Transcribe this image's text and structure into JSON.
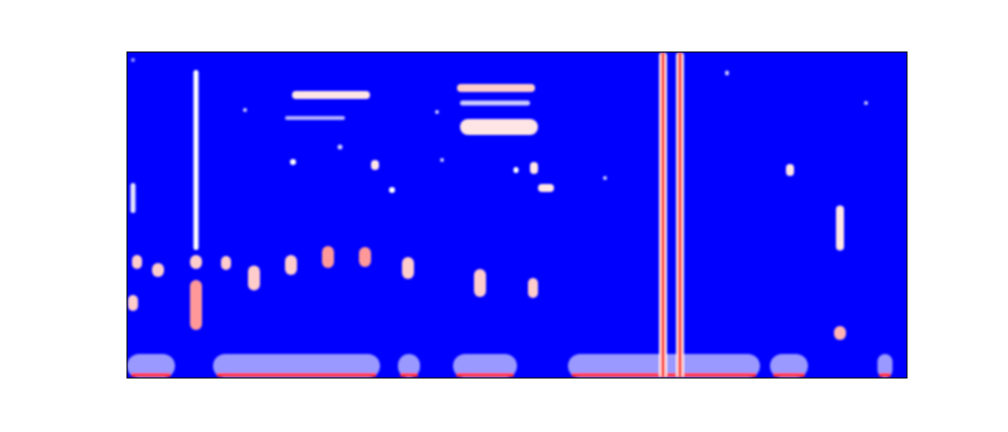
{
  "chart_data": {
    "type": "spectrogram",
    "tick_labels": false,
    "grid": false,
    "xlim": [
      0,
      780
    ],
    "ylim": [
      0,
      326
    ],
    "zlim": [
      0,
      1
    ],
    "spots": [
      {
        "x": 24,
        "y": 12,
        "width": 48,
        "height": 24,
        "intensity": 0.3
      },
      {
        "x": 169.5,
        "y": 12,
        "width": 167,
        "height": 24,
        "intensity": 0.3
      },
      {
        "x": 282,
        "y": 12,
        "width": 22,
        "height": 24,
        "intensity": 0.3
      },
      {
        "x": 358,
        "y": 12,
        "width": 64,
        "height": 24,
        "intensity": 0.3
      },
      {
        "x": 537,
        "y": 12,
        "width": 192,
        "height": 24,
        "intensity": 0.3
      },
      {
        "x": 662,
        "y": 12,
        "width": 38,
        "height": 24,
        "intensity": 0.3
      },
      {
        "x": 758,
        "y": 12,
        "width": 15,
        "height": 24,
        "intensity": 0.3
      },
      {
        "x": 24,
        "y": 3,
        "width": 40,
        "height": 4,
        "intensity": 0.9
      },
      {
        "x": 169.5,
        "y": 3,
        "width": 160,
        "height": 4,
        "intensity": 0.9
      },
      {
        "x": 282,
        "y": 3,
        "width": 18,
        "height": 4,
        "intensity": 0.9
      },
      {
        "x": 358,
        "y": 3,
        "width": 58,
        "height": 4,
        "intensity": 0.9
      },
      {
        "x": 537,
        "y": 3,
        "width": 185,
        "height": 4,
        "intensity": 0.9
      },
      {
        "x": 662,
        "y": 3,
        "width": 32,
        "height": 4,
        "intensity": 0.9
      },
      {
        "x": 758,
        "y": 3,
        "width": 12,
        "height": 4,
        "intensity": 0.9
      },
      {
        "x": 536,
        "y": 163,
        "width": 8,
        "height": 326,
        "intensity": 0.55
      },
      {
        "x": 553,
        "y": 163,
        "width": 8,
        "height": 326,
        "intensity": 0.55
      },
      {
        "x": 536,
        "y": 163,
        "width": 3,
        "height": 326,
        "intensity": 0.95
      },
      {
        "x": 553,
        "y": 163,
        "width": 3,
        "height": 326,
        "intensity": 0.95
      },
      {
        "x": 69,
        "y": 218,
        "width": 5,
        "height": 180,
        "intensity": 0.5
      },
      {
        "x": 69,
        "y": 73,
        "width": 12,
        "height": 50,
        "intensity": 0.7
      },
      {
        "x": 69,
        "y": 116,
        "width": 12,
        "height": 14,
        "intensity": 0.6
      },
      {
        "x": 10,
        "y": 116,
        "width": 10,
        "height": 14,
        "intensity": 0.6
      },
      {
        "x": 6,
        "y": 75,
        "width": 10,
        "height": 16,
        "intensity": 0.6
      },
      {
        "x": 31,
        "y": 108,
        "width": 12,
        "height": 14,
        "intensity": 0.6
      },
      {
        "x": 99,
        "y": 115,
        "width": 10,
        "height": 14,
        "intensity": 0.6
      },
      {
        "x": 127,
        "y": 100,
        "width": 12,
        "height": 25,
        "intensity": 0.6
      },
      {
        "x": 164,
        "y": 113,
        "width": 12,
        "height": 20,
        "intensity": 0.6
      },
      {
        "x": 201,
        "y": 121,
        "width": 12,
        "height": 22,
        "intensity": 0.7
      },
      {
        "x": 238,
        "y": 121,
        "width": 12,
        "height": 20,
        "intensity": 0.7
      },
      {
        "x": 281,
        "y": 110,
        "width": 12,
        "height": 22,
        "intensity": 0.6
      },
      {
        "x": 353,
        "y": 95,
        "width": 12,
        "height": 28,
        "intensity": 0.6
      },
      {
        "x": 406,
        "y": 90,
        "width": 10,
        "height": 20,
        "intensity": 0.6
      },
      {
        "x": 713,
        "y": 45,
        "width": 12,
        "height": 14,
        "intensity": 0.65
      },
      {
        "x": 713,
        "y": 150,
        "width": 8,
        "height": 45,
        "intensity": 0.55
      },
      {
        "x": 663,
        "y": 208,
        "width": 8,
        "height": 12,
        "intensity": 0.55
      },
      {
        "x": 204,
        "y": 283,
        "width": 78,
        "height": 8,
        "intensity": 0.55
      },
      {
        "x": 188,
        "y": 260,
        "width": 60,
        "height": 4,
        "intensity": 0.35
      },
      {
        "x": 166,
        "y": 216,
        "width": 6,
        "height": 6,
        "intensity": 0.5
      },
      {
        "x": 213,
        "y": 231,
        "width": 5,
        "height": 5,
        "intensity": 0.4
      },
      {
        "x": 248,
        "y": 213,
        "width": 8,
        "height": 10,
        "intensity": 0.55
      },
      {
        "x": 265,
        "y": 188,
        "width": 6,
        "height": 6,
        "intensity": 0.5
      },
      {
        "x": 315,
        "y": 218,
        "width": 4,
        "height": 4,
        "intensity": 0.4
      },
      {
        "x": 310,
        "y": 266,
        "width": 4,
        "height": 4,
        "intensity": 0.4
      },
      {
        "x": 369,
        "y": 290,
        "width": 78,
        "height": 8,
        "intensity": 0.6
      },
      {
        "x": 368,
        "y": 275,
        "width": 70,
        "height": 5,
        "intensity": 0.4
      },
      {
        "x": 372,
        "y": 251,
        "width": 78,
        "height": 16,
        "intensity": 0.55
      },
      {
        "x": 389,
        "y": 208,
        "width": 5,
        "height": 6,
        "intensity": 0.5
      },
      {
        "x": 407,
        "y": 210,
        "width": 8,
        "height": 12,
        "intensity": 0.55
      },
      {
        "x": 419,
        "y": 190,
        "width": 16,
        "height": 8,
        "intensity": 0.55
      },
      {
        "x": 478,
        "y": 200,
        "width": 4,
        "height": 4,
        "intensity": 0.4
      },
      {
        "x": 600,
        "y": 305,
        "width": 4,
        "height": 5,
        "intensity": 0.4
      },
      {
        "x": 739,
        "y": 275,
        "width": 4,
        "height": 4,
        "intensity": 0.4
      },
      {
        "x": 118,
        "y": 268,
        "width": 4,
        "height": 4,
        "intensity": 0.4
      },
      {
        "x": 6,
        "y": 180,
        "width": 5,
        "height": 30,
        "intensity": 0.45
      },
      {
        "x": 6,
        "y": 318,
        "width": 4,
        "height": 4,
        "intensity": 0.3
      }
    ]
  }
}
